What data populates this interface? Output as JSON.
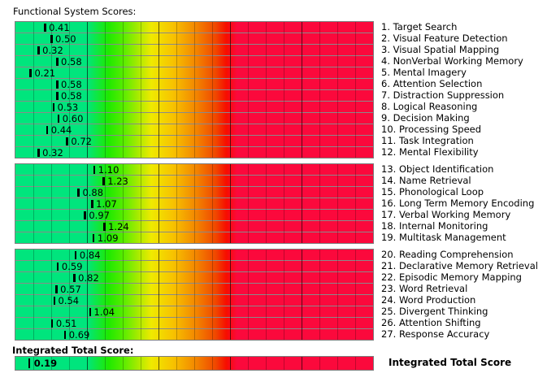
{
  "title": "Functional System Scores:",
  "integrated_heading": "Integrated Total Score:",
  "chart_data": {
    "type": "bar",
    "orientation": "horizontal",
    "title": "Functional System Scores:",
    "xlim": [
      0,
      5
    ],
    "minor_grid_step": 0.25,
    "major_grid_step": 1,
    "grid": "on",
    "marker_color": "#000000",
    "gradient_stops": [
      [
        0.0,
        "#00E57D"
      ],
      [
        0.2,
        "#00E57D"
      ],
      [
        0.26,
        "#1FE900"
      ],
      [
        0.3,
        "#55EC00"
      ],
      [
        0.38,
        "#EFEA00"
      ],
      [
        0.44,
        "#F7C300"
      ],
      [
        0.5,
        "#F38B00"
      ],
      [
        0.56,
        "#F04700"
      ],
      [
        0.59,
        "#F70D00"
      ],
      [
        0.62,
        "#FB093C"
      ],
      [
        1.0,
        "#FB093C"
      ]
    ],
    "border_color": "#7d7d7d",
    "groups": [
      {
        "items": [
          {
            "label": "1. Target Search",
            "value": 0.41,
            "display": "0.41"
          },
          {
            "label": "2. Visual Feature Detection",
            "value": 0.5,
            "display": "0.50"
          },
          {
            "label": "3. Visual Spatial Mapping",
            "value": 0.32,
            "display": "0.32"
          },
          {
            "label": "4. NonVerbal Working Memory",
            "value": 0.58,
            "display": "0.58"
          },
          {
            "label": "5. Mental Imagery",
            "value": 0.21,
            "display": "0.21"
          },
          {
            "label": "6. Attention Selection",
            "value": 0.58,
            "display": "0.58"
          },
          {
            "label": "7. Distraction Suppression",
            "value": 0.58,
            "display": "0.58"
          },
          {
            "label": "8. Logical Reasoning",
            "value": 0.53,
            "display": "0.53"
          },
          {
            "label": "9. Decision Making",
            "value": 0.6,
            "display": "0.60"
          },
          {
            "label": "10. Processing Speed",
            "value": 0.44,
            "display": "0.44"
          },
          {
            "label": "11. Task Integration",
            "value": 0.72,
            "display": "0.72"
          },
          {
            "label": "12. Mental Flexibility",
            "value": 0.32,
            "display": "0.32"
          }
        ]
      },
      {
        "items": [
          {
            "label": "13. Object Identification",
            "value": 1.1,
            "display": "1.10"
          },
          {
            "label": "14. Name Retrieval",
            "value": 1.23,
            "display": "1.23"
          },
          {
            "label": "15. Phonological Loop",
            "value": 0.88,
            "display": "0.88"
          },
          {
            "label": "16. Long Term Memory Encoding",
            "value": 1.07,
            "display": "1.07"
          },
          {
            "label": "17. Verbal Working Memory",
            "value": 0.97,
            "display": "0.97"
          },
          {
            "label": "18. Internal Monitoring",
            "value": 1.24,
            "display": "1.24"
          },
          {
            "label": "19. Multitask Management",
            "value": 1.09,
            "display": "1.09"
          }
        ]
      },
      {
        "items": [
          {
            "label": "20. Reading Comprehension",
            "value": 0.84,
            "display": "0.84"
          },
          {
            "label": "21. Declarative Memory Retrieval",
            "value": 0.59,
            "display": "0.59"
          },
          {
            "label": "22. Episodic Memory Mapping",
            "value": 0.82,
            "display": "0.82"
          },
          {
            "label": "23. Word Retrieval",
            "value": 0.57,
            "display": "0.57"
          },
          {
            "label": "24. Word Production",
            "value": 0.54,
            "display": "0.54"
          },
          {
            "label": "25. Divergent Thinking",
            "value": 1.04,
            "display": "1.04"
          },
          {
            "label": "26. Attention Shifting",
            "value": 0.51,
            "display": "0.51"
          },
          {
            "label": "27. Response Accuracy",
            "value": 0.69,
            "display": "0.69"
          }
        ]
      }
    ],
    "integrated_total": {
      "label": "Integrated Total Score",
      "value": 0.19,
      "display": "0.19"
    }
  }
}
